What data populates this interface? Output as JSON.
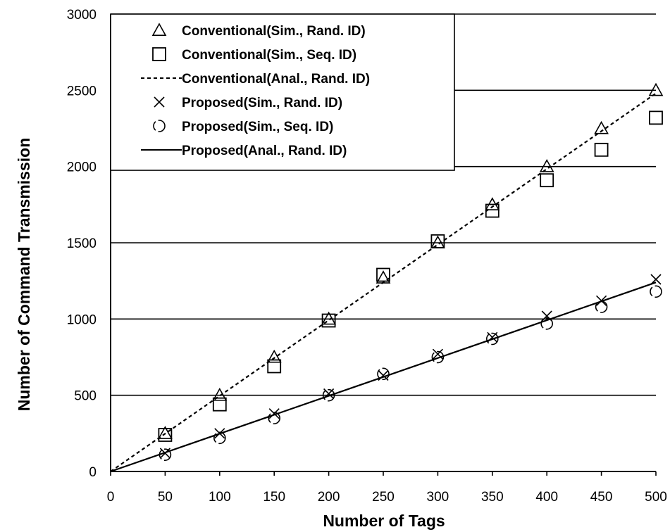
{
  "chart_data": {
    "type": "scatter",
    "xlabel": "Number of Tags",
    "ylabel": "Number of Command Transmission",
    "xlim": [
      0,
      500
    ],
    "ylim": [
      0,
      3000
    ],
    "xticks": [
      "0",
      "50",
      "100",
      "150",
      "200",
      "250",
      "300",
      "350",
      "400",
      "450",
      "500"
    ],
    "yticks": [
      "0",
      "500",
      "1000",
      "1500",
      "2000",
      "2500",
      "3000"
    ],
    "grid": "horizontal",
    "legend_position": "top-left",
    "series": [
      {
        "name": "Conventional(Sim., Rand. ID)",
        "marker": "triangle",
        "x": [
          50,
          100,
          150,
          200,
          250,
          300,
          350,
          400,
          450,
          500
        ],
        "y": [
          250,
          500,
          750,
          1000,
          1270,
          1500,
          1750,
          2000,
          2250,
          2500
        ]
      },
      {
        "name": "Conventional(Sim., Seq. ID)",
        "marker": "square",
        "x": [
          50,
          100,
          150,
          200,
          250,
          300,
          350,
          400,
          450,
          500
        ],
        "y": [
          240,
          440,
          690,
          990,
          1290,
          1510,
          1710,
          1910,
          2110,
          2320
        ]
      },
      {
        "name": "Conventional(Anal., Rand. ID)",
        "line": "dashed",
        "x": [
          0,
          500
        ],
        "y": [
          0,
          2480
        ]
      },
      {
        "name": "Proposed(Sim., Rand. ID)",
        "marker": "x",
        "x": [
          50,
          100,
          150,
          200,
          250,
          300,
          350,
          400,
          450,
          500
        ],
        "y": [
          120,
          250,
          380,
          510,
          630,
          770,
          880,
          1020,
          1120,
          1260
        ]
      },
      {
        "name": "Proposed(Sim., Seq. ID)",
        "marker": "circle",
        "x": [
          50,
          100,
          150,
          200,
          250,
          300,
          350,
          400,
          450,
          500
        ],
        "y": [
          110,
          220,
          350,
          500,
          640,
          750,
          870,
          970,
          1080,
          1180
        ]
      },
      {
        "name": "Proposed(Anal., Rand. ID)",
        "line": "solid",
        "x": [
          0,
          500
        ],
        "y": [
          0,
          1240
        ]
      }
    ]
  }
}
